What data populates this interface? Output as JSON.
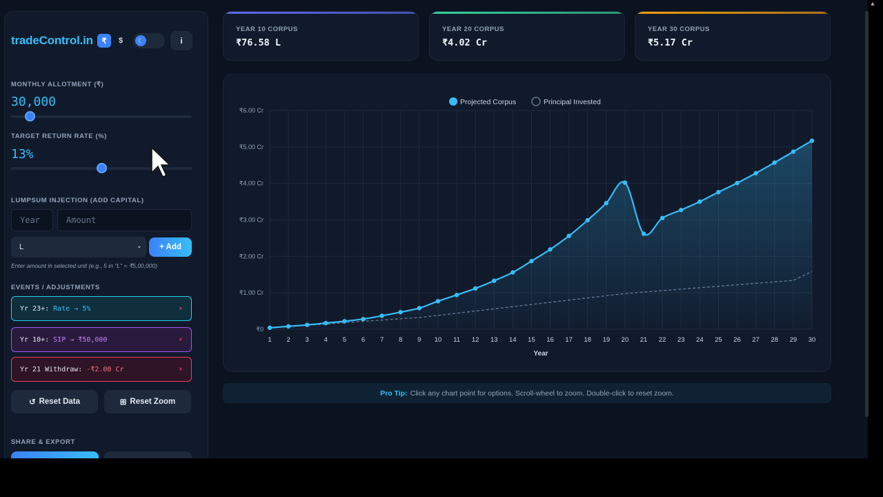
{
  "sidebar": {
    "brand": "tradeControl.in",
    "currency_inr": "₹",
    "currency_usd": "$",
    "theme_icon": "moon-icon",
    "info_label": "i",
    "monthly_label": "MONTHLY ALLOTMENT (₹)",
    "monthly_value": "30,000",
    "monthly_slider_fraction": 0.08,
    "rate_label": "TARGET RETURN RATE (%)",
    "rate_value": "13%",
    "rate_slider_fraction": 0.5,
    "lumpsum_label": "LUMPSUM INJECTION (ADD CAPITAL)",
    "year_placeholder": "Year",
    "amount_placeholder": "Amount",
    "unit_selected": "L",
    "add_label": "+ Add",
    "hint": "Enter amount in selected unit (e.g., 5 in \"L\" = ₹5,00,000)",
    "events_label": "EVENTS / ADJUSTMENTS",
    "events": [
      {
        "key": "Yr 23+:",
        "value": "Rate → 5%",
        "remove": "×"
      },
      {
        "key": "Yr 10+:",
        "value": "SIP → ₹50,000",
        "remove": "×"
      },
      {
        "key": "Yr 21 Withdraw:",
        "value": "-₹2.00 Cr",
        "remove": "×"
      }
    ],
    "reset_data": "Reset Data",
    "reset_zoom": "Reset Zoom",
    "share_label": "SHARE & EXPORT"
  },
  "cards": [
    {
      "label": "YEAR 10 CORPUS",
      "value": "₹76.58 L",
      "accent": "#6366f1"
    },
    {
      "label": "YEAR 20 CORPUS",
      "value": "₹4.02 Cr",
      "accent": "#34d399"
    },
    {
      "label": "YEAR 30 CORPUS",
      "value": "₹5.17 Cr",
      "accent": "#f59e0b"
    }
  ],
  "tip": {
    "bold": "Pro Tip:",
    "text": "Click any chart point for options. Scroll-wheel to zoom. Double-click to reset zoom."
  },
  "chart_data": {
    "type": "line",
    "xlabel": "Year",
    "ylabel": "",
    "x": [
      1,
      2,
      3,
      4,
      5,
      6,
      7,
      8,
      9,
      10,
      11,
      12,
      13,
      14,
      15,
      16,
      17,
      18,
      19,
      20,
      21,
      22,
      23,
      24,
      25,
      26,
      27,
      28,
      29,
      30
    ],
    "ylim": [
      0,
      6
    ],
    "y_unit": "Cr",
    "y_ticks": [
      "₹0",
      "₹1.00 Cr",
      "₹2.00 Cr",
      "₹3.00 Cr",
      "₹4.00 Cr",
      "₹5.00 Cr",
      "₹6.00 Cr"
    ],
    "legend": [
      "Projected Corpus",
      "Principal Invested"
    ],
    "legend_position": "top-center",
    "grid": true,
    "series": [
      {
        "name": "Projected Corpus",
        "color": "#38bdf8",
        "values": [
          0.04,
          0.08,
          0.12,
          0.17,
          0.22,
          0.28,
          0.37,
          0.47,
          0.58,
          0.77,
          0.94,
          1.12,
          1.33,
          1.56,
          1.87,
          2.19,
          2.56,
          2.99,
          3.46,
          4.02,
          2.62,
          3.05,
          3.27,
          3.5,
          3.76,
          4.01,
          4.28,
          4.57,
          4.87,
          5.17
        ]
      },
      {
        "name": "Principal Invested",
        "color": "#64748b",
        "values": [
          0.04,
          0.07,
          0.11,
          0.14,
          0.18,
          0.22,
          0.25,
          0.29,
          0.32,
          0.38,
          0.44,
          0.5,
          0.56,
          0.62,
          0.68,
          0.74,
          0.8,
          0.86,
          0.92,
          0.98,
          1.02,
          1.06,
          1.1,
          1.14,
          1.18,
          1.22,
          1.26,
          1.3,
          1.34,
          1.58
        ]
      }
    ]
  }
}
